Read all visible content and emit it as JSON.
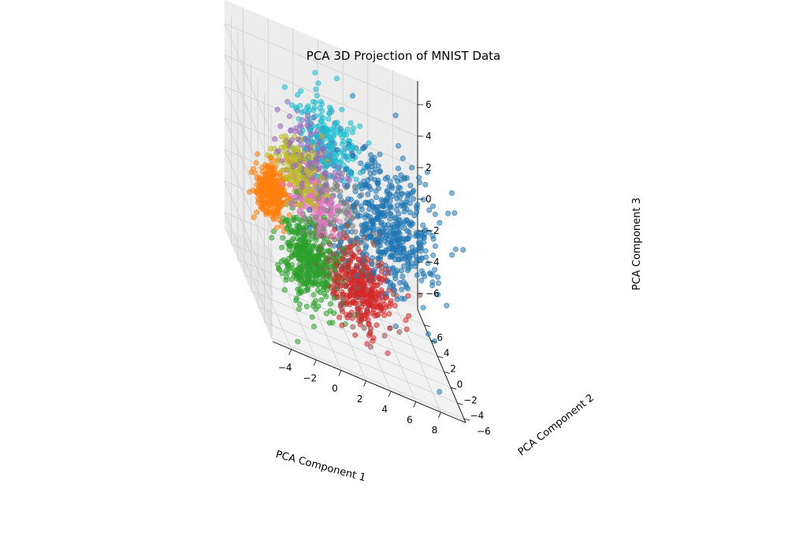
{
  "chart_data": {
    "type": "scatter",
    "projection": "3d",
    "title": "PCA 3D Projection of MNIST Data",
    "xlabel": "PCA Component 1",
    "ylabel": "PCA Component 2",
    "zlabel": "PCA Component 3",
    "xlim": [
      -5.5,
      10
    ],
    "ylim": [
      -6.5,
      8
    ],
    "zlim": [
      -7,
      7.5
    ],
    "xticks": [
      "−4",
      "−2",
      "0",
      "2",
      "4",
      "6",
      "8"
    ],
    "yticks": [
      "−6",
      "−4",
      "−2",
      "0",
      "2",
      "4",
      "6"
    ],
    "zticks": [
      "−6",
      "−4",
      "−2",
      "0",
      "2",
      "4",
      "6"
    ],
    "grid": true,
    "legend": "none",
    "marker_alpha": 0.55,
    "clusters": [
      {
        "color": "#1f77b4",
        "centroid": [
          5.5,
          0.0,
          0.5
        ],
        "spread": [
          1.8,
          1.9,
          2.0
        ],
        "count": 520
      },
      {
        "color": "#ff7f0e",
        "centroid": [
          -4.2,
          -1.5,
          0.5
        ],
        "spread": [
          0.6,
          0.6,
          0.8
        ],
        "count": 320
      },
      {
        "color": "#2ca02c",
        "centroid": [
          -1.5,
          -2.5,
          -2.5
        ],
        "spread": [
          1.1,
          1.2,
          1.3
        ],
        "count": 420
      },
      {
        "color": "#d62728",
        "centroid": [
          2.5,
          -3.5,
          -2.5
        ],
        "spread": [
          1.2,
          1.0,
          1.2
        ],
        "count": 300
      },
      {
        "color": "#9467bd",
        "centroid": [
          0.0,
          1.5,
          2.5
        ],
        "spread": [
          1.2,
          1.3,
          1.3
        ],
        "count": 160
      },
      {
        "color": "#8c564b",
        "centroid": [
          2.0,
          -2.0,
          -2.5
        ],
        "spread": [
          1.4,
          1.4,
          1.3
        ],
        "count": 130
      },
      {
        "color": "#e377c2",
        "centroid": [
          -0.5,
          -0.5,
          0.5
        ],
        "spread": [
          0.9,
          0.9,
          1.0
        ],
        "count": 170
      },
      {
        "color": "#7f7f7f",
        "centroid": [
          1.0,
          0.5,
          0.0
        ],
        "spread": [
          1.3,
          1.3,
          1.3
        ],
        "count": 110
      },
      {
        "color": "#bcbd22",
        "centroid": [
          -1.5,
          0.0,
          2.0
        ],
        "spread": [
          0.9,
          1.0,
          1.1
        ],
        "count": 200
      },
      {
        "color": "#17becf",
        "centroid": [
          1.5,
          3.0,
          3.5
        ],
        "spread": [
          1.2,
          1.2,
          1.1
        ],
        "count": 190
      }
    ]
  }
}
